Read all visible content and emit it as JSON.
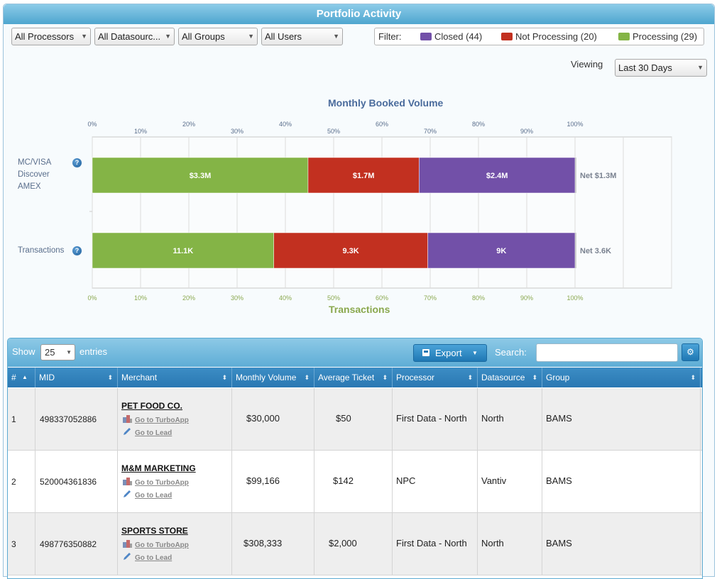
{
  "panel": {
    "title": "Portfolio Activity"
  },
  "filters": {
    "selects": [
      {
        "value": "All Processors"
      },
      {
        "value": "All Datasourc..."
      },
      {
        "value": "All Groups"
      },
      {
        "value": "All Users"
      }
    ],
    "legend_label": "Filter:",
    "status_filters": [
      {
        "label": "Closed (44)",
        "color": "#7250a8"
      },
      {
        "label": "Not Processing (20)",
        "color": "#c23020"
      },
      {
        "label": "Processing (29)",
        "color": "#84b446"
      }
    ],
    "viewing_label": "Viewing",
    "viewing_value": "Last 30 Days"
  },
  "chart_data": {
    "type": "bar",
    "orientation": "horizontal-stacked-percent",
    "title": "Monthly Booked Volume",
    "xlabel": "Transactions",
    "xlim": [
      0,
      100
    ],
    "top_axis_ticks": [
      "0%",
      "10%",
      "20%",
      "30%",
      "40%",
      "50%",
      "60%",
      "70%",
      "80%",
      "90%",
      "100%"
    ],
    "bottom_axis_ticks": [
      "0%",
      "10%",
      "20%",
      "30%",
      "40%",
      "50%",
      "60%",
      "70%",
      "80%",
      "90%",
      "100%"
    ],
    "categories": [
      {
        "label_lines": [
          "MC/VISA",
          "Discover",
          "AMEX"
        ],
        "net_label": "Net $1.3M"
      },
      {
        "label_lines": [
          "Transactions"
        ],
        "net_label": "Net 3.6K"
      }
    ],
    "series": [
      {
        "color": "#84b446",
        "values": [
          44.7,
          37.6
        ],
        "labels": [
          "$3.3M",
          "11.1K"
        ]
      },
      {
        "color": "#c23020",
        "values": [
          23.0,
          31.9
        ],
        "labels": [
          "$1.7M",
          "9.3K"
        ]
      },
      {
        "color": "#7250a8",
        "values": [
          32.3,
          30.5
        ],
        "labels": [
          "$2.4M",
          "9K"
        ]
      }
    ],
    "grid": true
  },
  "table": {
    "show_label": "Show",
    "entries_label": "entries",
    "page_length": "25",
    "export_label": "Export",
    "search_label": "Search:",
    "search_value": "",
    "columns": [
      "#",
      "MID",
      "Merchant",
      "Monthly Volume",
      "Average Ticket",
      "Processor",
      "Datasource",
      "Group"
    ],
    "turbo_link": "Go to TurboApp",
    "lead_link": "Go to Lead",
    "rows": [
      {
        "num": "1",
        "mid": "498337052886",
        "merchant": "PET FOOD CO.",
        "volume": "$30,000",
        "ticket": "$50",
        "processor": "First Data - North",
        "datasource": "North",
        "group": "BAMS"
      },
      {
        "num": "2",
        "mid": "520004361836",
        "merchant": "M&M MARKETING",
        "volume": "$99,166",
        "ticket": "$142",
        "processor": "NPC",
        "datasource": "Vantiv",
        "group": "BAMS"
      },
      {
        "num": "3",
        "mid": "498776350882",
        "merchant": "SPORTS STORE",
        "volume": "$308,333",
        "ticket": "$2,000",
        "processor": "First Data - North",
        "datasource": "North",
        "group": "BAMS"
      }
    ]
  }
}
